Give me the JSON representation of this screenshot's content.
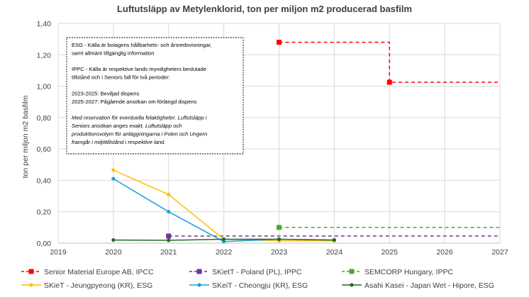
{
  "chart_data": {
    "type": "line",
    "title": "Luftutsläpp av Metylenklorid, ton per miljon m2 producerad basfilm",
    "ylabel": "ton per miljon m2 basfilm",
    "xlabel": "",
    "xlim": [
      2019,
      2027
    ],
    "ylim": [
      0,
      1.4
    ],
    "x_ticks": [
      "2019",
      "2020",
      "2021",
      "2022",
      "2023",
      "2024",
      "2025",
      "2026",
      "2027"
    ],
    "y_ticks": [
      "0,00",
      "0,20",
      "0,40",
      "0,60",
      "0,80",
      "1,00",
      "1,20",
      "1,40"
    ],
    "grid": true,
    "legend_position": "bottom",
    "series": [
      {
        "name": "Senior Material Europe AB, IPCC",
        "color": "#ff0000",
        "style": "dashed",
        "marker": "square",
        "points": [
          [
            2023,
            1.28
          ],
          [
            2025,
            1.28
          ],
          [
            2025,
            1.025
          ],
          [
            2027,
            1.025
          ]
        ],
        "marker_points": [
          [
            2023,
            1.28
          ],
          [
            2025,
            1.025
          ]
        ]
      },
      {
        "name": "SKietT - Poland (PL), IPPC",
        "color": "#7030a0",
        "style": "dashed",
        "marker": "square",
        "points": [
          [
            2021,
            0.045
          ],
          [
            2027,
            0.045
          ]
        ],
        "marker_points": [
          [
            2021,
            0.045
          ]
        ]
      },
      {
        "name": "SEMCORP Hungary, IPPC",
        "color": "#4ca832",
        "style": "dashed",
        "marker": "square",
        "points": [
          [
            2023,
            0.1
          ],
          [
            2027,
            0.1
          ]
        ],
        "marker_points": [
          [
            2023,
            0.1
          ]
        ]
      },
      {
        "name": "SKieT - Jeungpyeong (KR), ESG",
        "color": "#ffc000",
        "style": "solid",
        "marker": "circle",
        "points": [
          [
            2020,
            0.465
          ],
          [
            2021,
            0.31
          ],
          [
            2022,
            0.025
          ],
          [
            2023,
            0.015
          ],
          [
            2024,
            0.015
          ]
        ],
        "marker_points": [
          [
            2020,
            0.465
          ],
          [
            2021,
            0.31
          ],
          [
            2022,
            0.025
          ],
          [
            2023,
            0.015
          ],
          [
            2024,
            0.015
          ]
        ]
      },
      {
        "name": "SKeiT - Cheongju (KR), ESG",
        "color": "#1ea0dc",
        "style": "solid",
        "marker": "circle",
        "points": [
          [
            2020,
            0.41
          ],
          [
            2021,
            0.2
          ],
          [
            2022,
            0.01
          ],
          [
            2023,
            0.025
          ],
          [
            2024,
            0.02
          ]
        ],
        "marker_points": [
          [
            2020,
            0.41
          ],
          [
            2021,
            0.2
          ],
          [
            2022,
            0.01
          ],
          [
            2023,
            0.025
          ],
          [
            2024,
            0.02
          ]
        ]
      },
      {
        "name": "Asahi Kasei - Japan Wet - Hipore, ESG",
        "color": "#1e6e1e",
        "style": "solid",
        "marker": "circle",
        "points": [
          [
            2020,
            0.02
          ],
          [
            2021,
            0.018
          ],
          [
            2022,
            0.025
          ],
          [
            2023,
            0.025
          ],
          [
            2024,
            0.02
          ]
        ],
        "marker_points": [
          [
            2020,
            0.02
          ],
          [
            2021,
            0.018
          ],
          [
            2022,
            0.025
          ],
          [
            2023,
            0.025
          ],
          [
            2024,
            0.02
          ]
        ]
      }
    ],
    "annotation": {
      "lines": [
        {
          "text": "ESG - Källa är bolagens hållbarhets- och årsredovisningar,",
          "italic": false
        },
        {
          "text": "samt allmänt tillgänglig information",
          "italic": false
        },
        {
          "text": "",
          "italic": false
        },
        {
          "text": "IPPC - Källa är respektive lands myndigheters beslutade",
          "italic": false
        },
        {
          "text": "tillstånd och i Seniors fall för två perioder:",
          "italic": false
        },
        {
          "text": "",
          "italic": false
        },
        {
          "text": "2023-2025: Beviljad dispens",
          "italic": false
        },
        {
          "text": "2025-2027: Pågående ansökan om förlängd dispens",
          "italic": false
        },
        {
          "text": "",
          "italic": false
        },
        {
          "text": "Med reservation för eventuella felaktigheter. Luftutsläpp i",
          "italic": true
        },
        {
          "text": "Seniors ansökan anges exakt. Luftutsläpp och",
          "italic": true
        },
        {
          "text": "produktionsvolym för anläggningarna i Polen och Ungern",
          "italic": true
        },
        {
          "text": "framgår i miljötillstånd i respektive land.",
          "italic": true
        }
      ]
    }
  }
}
